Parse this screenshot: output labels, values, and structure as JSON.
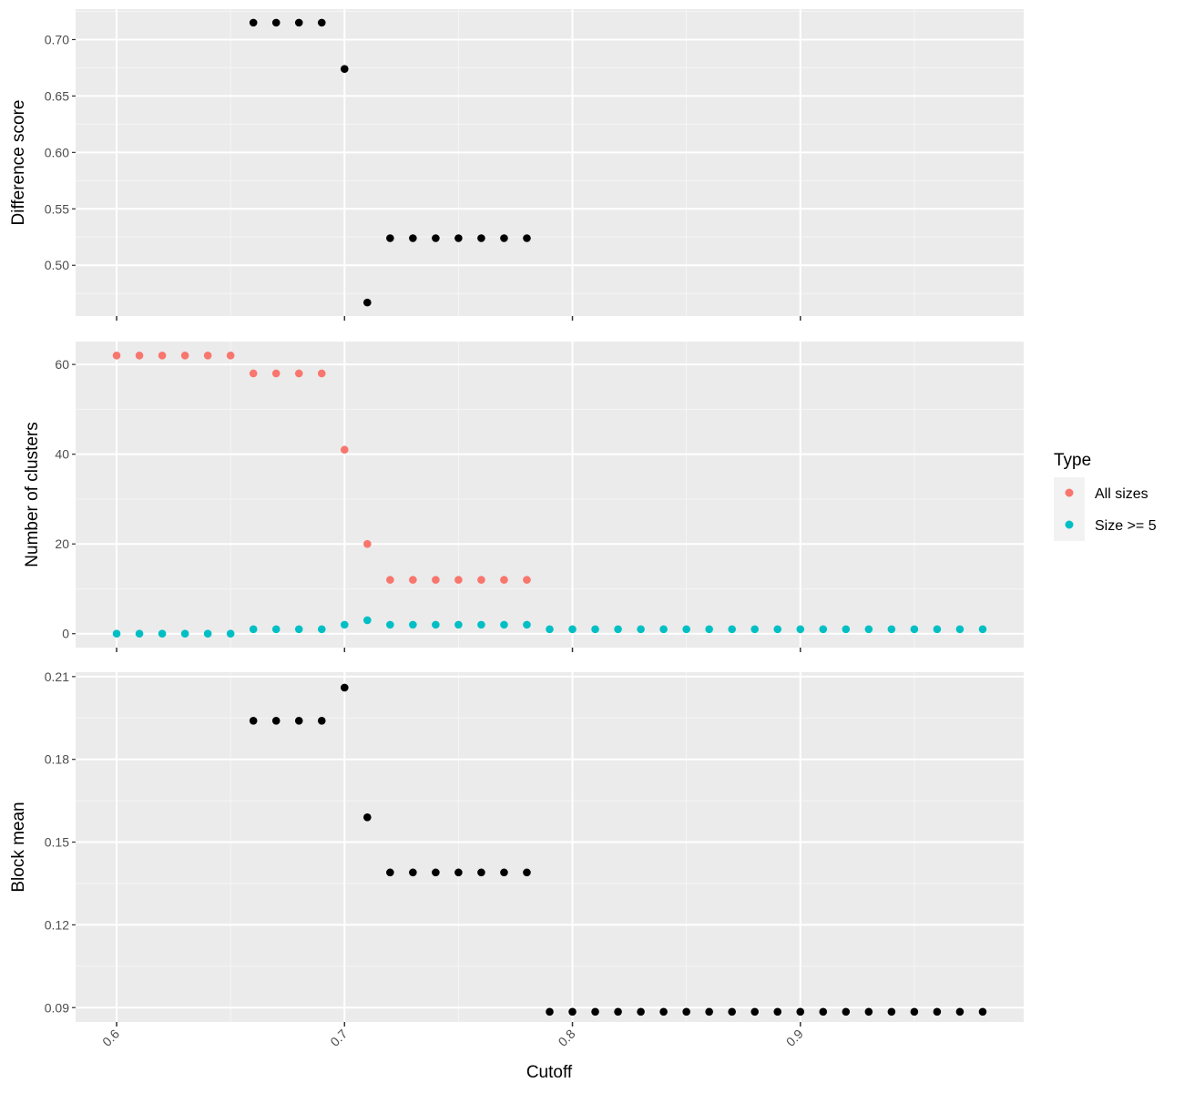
{
  "chart_data": [
    {
      "type": "scatter",
      "ylabel": "Difference score",
      "xlabel": "",
      "xlim": [
        0.582,
        0.998
      ],
      "ylim": [
        0.455,
        0.727
      ],
      "xticks": [
        0.6,
        0.7,
        0.8,
        0.9
      ],
      "yticks": [
        0.5,
        0.55,
        0.6,
        0.65,
        0.7
      ],
      "ytick_labels": [
        "0.50",
        "0.55",
        "0.60",
        "0.65",
        "0.70"
      ],
      "grid": true,
      "series": [
        {
          "color": "#000000",
          "x": [
            0.66,
            0.67,
            0.68,
            0.69,
            0.7,
            0.71,
            0.72,
            0.73,
            0.74,
            0.75,
            0.76,
            0.77,
            0.78
          ],
          "y": [
            0.715,
            0.715,
            0.715,
            0.715,
            0.674,
            0.467,
            0.524,
            0.524,
            0.524,
            0.524,
            0.524,
            0.524,
            0.524
          ]
        }
      ]
    },
    {
      "type": "scatter",
      "ylabel": "Number of clusters",
      "xlabel": "",
      "xlim": [
        0.582,
        0.998
      ],
      "ylim": [
        -3.1,
        65.1
      ],
      "xticks": [
        0.6,
        0.7,
        0.8,
        0.9
      ],
      "yticks": [
        0,
        20,
        40,
        60
      ],
      "ytick_labels": [
        "0",
        "20",
        "40",
        "60"
      ],
      "grid": true,
      "legend": {
        "title": "Type",
        "placement": "right"
      },
      "series": [
        {
          "name": "All sizes",
          "color": "#F8766D",
          "x": [
            0.6,
            0.61,
            0.62,
            0.63,
            0.64,
            0.65,
            0.66,
            0.67,
            0.68,
            0.69,
            0.7,
            0.71,
            0.72,
            0.73,
            0.74,
            0.75,
            0.76,
            0.77,
            0.78
          ],
          "y": [
            62,
            62,
            62,
            62,
            62,
            62,
            58,
            58,
            58,
            58,
            41,
            20,
            12,
            12,
            12,
            12,
            12,
            12,
            12
          ]
        },
        {
          "name": "Size >= 5",
          "color": "#00BFC4",
          "x": [
            0.6,
            0.61,
            0.62,
            0.63,
            0.64,
            0.65,
            0.66,
            0.67,
            0.68,
            0.69,
            0.7,
            0.71,
            0.72,
            0.73,
            0.74,
            0.75,
            0.76,
            0.77,
            0.78,
            0.79,
            0.8,
            0.81,
            0.82,
            0.83,
            0.84,
            0.85,
            0.86,
            0.87,
            0.88,
            0.89,
            0.9,
            0.91,
            0.92,
            0.93,
            0.94,
            0.95,
            0.96,
            0.97,
            0.98
          ],
          "y": [
            0,
            0,
            0,
            0,
            0,
            0,
            1,
            1,
            1,
            1,
            2,
            3,
            2,
            2,
            2,
            2,
            2,
            2,
            2,
            1,
            1,
            1,
            1,
            1,
            1,
            1,
            1,
            1,
            1,
            1,
            1,
            1,
            1,
            1,
            1,
            1,
            1,
            1,
            1
          ]
        }
      ]
    },
    {
      "type": "scatter",
      "ylabel": "Block mean",
      "xlabel": "Cutoff",
      "xlim": [
        0.582,
        0.998
      ],
      "ylim": [
        0.0848,
        0.2116
      ],
      "xticks": [
        0.6,
        0.7,
        0.8,
        0.9
      ],
      "xtick_labels": [
        "0.6",
        "0.7",
        "0.8",
        "0.9"
      ],
      "yticks": [
        0.09,
        0.12,
        0.15,
        0.18,
        0.21
      ],
      "ytick_labels": [
        "0.09",
        "0.12",
        "0.15",
        "0.18",
        "0.21"
      ],
      "grid": true,
      "series": [
        {
          "color": "#000000",
          "x": [
            0.66,
            0.67,
            0.68,
            0.69,
            0.7,
            0.71,
            0.72,
            0.73,
            0.74,
            0.75,
            0.76,
            0.77,
            0.78,
            0.79,
            0.8,
            0.81,
            0.82,
            0.83,
            0.84,
            0.85,
            0.86,
            0.87,
            0.88,
            0.89,
            0.9,
            0.91,
            0.92,
            0.93,
            0.94,
            0.95,
            0.96,
            0.97,
            0.98
          ],
          "y": [
            0.194,
            0.194,
            0.194,
            0.194,
            0.206,
            0.159,
            0.139,
            0.139,
            0.139,
            0.139,
            0.139,
            0.139,
            0.139,
            0.0885,
            0.0885,
            0.0885,
            0.0885,
            0.0885,
            0.0885,
            0.0885,
            0.0885,
            0.0885,
            0.0885,
            0.0885,
            0.0885,
            0.0885,
            0.0885,
            0.0885,
            0.0885,
            0.0885,
            0.0885,
            0.0885,
            0.0885
          ]
        }
      ]
    }
  ]
}
